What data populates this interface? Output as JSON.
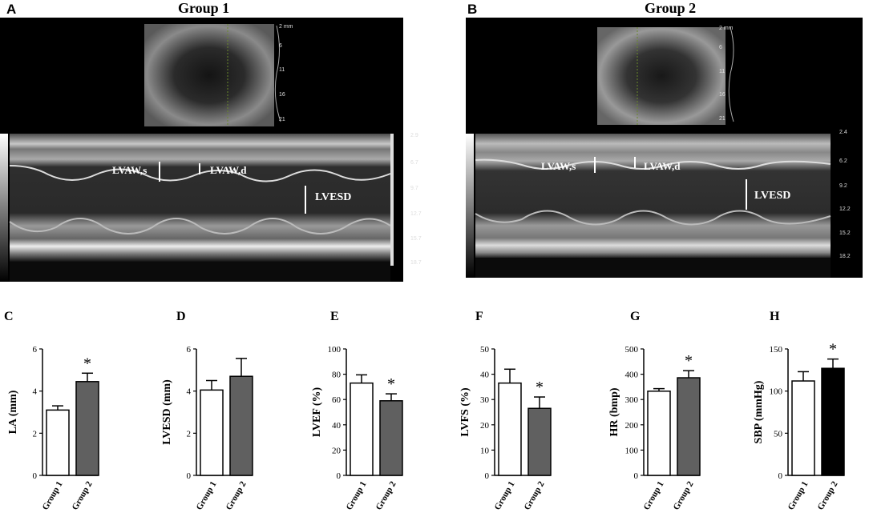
{
  "panels": {
    "A": "A",
    "B": "B",
    "C": "C",
    "D": "D",
    "E": "E",
    "F": "F",
    "G": "G",
    "H": "H"
  },
  "echo": {
    "A": {
      "title": "Group 1",
      "labels": {
        "lvaws": "LVAW,s",
        "lvawd": "LVAW,d",
        "lvesd": "LVESD"
      },
      "scale_top": [
        "2 mm",
        "6",
        "11",
        "16",
        "21"
      ],
      "scale_main": [
        "2.9",
        "6.7",
        "9.7",
        "12.7",
        "15.7",
        "18.7"
      ]
    },
    "B": {
      "title": "Group 2",
      "labels": {
        "lvaws": "LVAW,s",
        "lvawd": "LVAW,d",
        "lvesd": "LVESD"
      },
      "scale_top": [
        "2 mm",
        "6",
        "11",
        "16",
        "21"
      ],
      "scale_main": [
        "2.4",
        "6.2",
        "9.2",
        "12.2",
        "15.2",
        "18.2"
      ]
    }
  },
  "colors": {
    "group1": "#ffffff",
    "group2": "#606060",
    "group2_h": "#000000",
    "axis": "#000000"
  },
  "chart_data": [
    {
      "panel": "C",
      "type": "bar",
      "categories": [
        "Group 1",
        "Group 2"
      ],
      "values": [
        3.1,
        4.45
      ],
      "errors": [
        0.2,
        0.4
      ],
      "ylabel": "LA (mm)",
      "ylim": [
        0,
        6
      ],
      "yticks": [
        0,
        2,
        4,
        6
      ],
      "sig": "*"
    },
    {
      "panel": "D",
      "type": "bar",
      "categories": [
        "Group 1",
        "Group 2"
      ],
      "values": [
        4.05,
        4.7
      ],
      "errors": [
        0.45,
        0.85
      ],
      "ylabel": "LVESD (mm)",
      "ylim": [
        0,
        6
      ],
      "yticks": [
        0,
        2,
        4,
        6
      ],
      "sig": ""
    },
    {
      "panel": "E",
      "type": "bar",
      "categories": [
        "Group 1",
        "Group 2"
      ],
      "values": [
        73,
        59
      ],
      "errors": [
        6.5,
        5.5
      ],
      "ylabel": "LVEF (%)",
      "ylim": [
        0,
        100
      ],
      "yticks": [
        0,
        20,
        40,
        60,
        80,
        100
      ],
      "sig": "*"
    },
    {
      "panel": "F",
      "type": "bar",
      "categories": [
        "Group 1",
        "Group 2"
      ],
      "values": [
        36.5,
        26.5
      ],
      "errors": [
        5.5,
        4.5
      ],
      "ylabel": "LVFS (%)",
      "ylim": [
        0,
        50
      ],
      "yticks": [
        0,
        10,
        20,
        30,
        40,
        50
      ],
      "sig": "*"
    },
    {
      "panel": "G",
      "type": "bar",
      "categories": [
        "Group 1",
        "Group 2"
      ],
      "values": [
        333,
        386
      ],
      "errors": [
        10,
        28
      ],
      "ylabel": "HR (bmp)",
      "ylim": [
        0,
        500
      ],
      "yticks": [
        0,
        100,
        200,
        300,
        400,
        500
      ],
      "sig": "*"
    },
    {
      "panel": "H",
      "type": "bar",
      "categories": [
        "Group 1",
        "Group 2"
      ],
      "values": [
        112,
        127
      ],
      "errors": [
        11,
        11
      ],
      "ylabel": "SBP (mmHg)",
      "ylim": [
        0,
        150
      ],
      "yticks": [
        0,
        50,
        100,
        150
      ],
      "sig": "*"
    }
  ]
}
